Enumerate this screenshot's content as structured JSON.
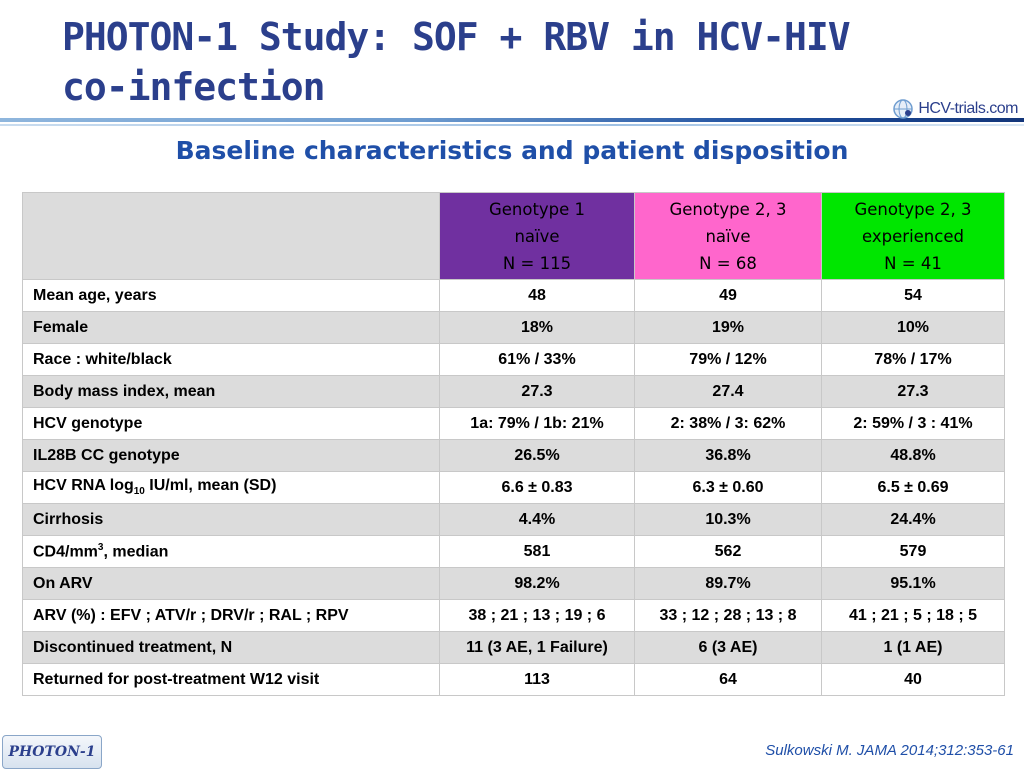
{
  "title_line1": "PHOTON-1 Study: SOF + RBV in HCV-HIV",
  "title_line2": "co-infection",
  "logo": {
    "text": "HCV-trials.com",
    "icon": "globe-logo-icon",
    "color": "#2b3f8c"
  },
  "subtitle": "Baseline characteristics and patient disposition",
  "columns": [
    {
      "lines": [
        "Genotype 1",
        "naïve",
        "N = 115"
      ],
      "color": "#7030a0"
    },
    {
      "lines": [
        "Genotype 2, 3",
        "naïve",
        "N = 68"
      ],
      "color": "#ff66cc"
    },
    {
      "lines": [
        "Genotype 2, 3",
        "experienced",
        "N = 41"
      ],
      "color": "#00e600"
    }
  ],
  "rows": [
    {
      "label": "Mean age, years",
      "values": [
        "48",
        "49",
        "54"
      ]
    },
    {
      "label": "Female",
      "values": [
        "18%",
        "19%",
        "10%"
      ]
    },
    {
      "label": "Race : white/black",
      "values": [
        "61% / 33%",
        "79% / 12%",
        "78% / 17%"
      ]
    },
    {
      "label": "Body mass index, mean",
      "values": [
        "27.3",
        "27.4",
        "27.3"
      ]
    },
    {
      "label": "HCV genotype",
      "values": [
        "1a: 79% / 1b: 21%",
        "2: 38% / 3: 62%",
        "2: 59% / 3 : 41%"
      ]
    },
    {
      "label": "IL28B CC genotype",
      "values": [
        "26.5%",
        "36.8%",
        "48.8%"
      ]
    },
    {
      "label_pre": "HCV RNA log",
      "label_sub": "10",
      "label_post": " IU/ml, mean (SD)",
      "values": [
        "6.6 ± 0.83",
        "6.3 ± 0.60",
        "6.5 ± 0.69"
      ]
    },
    {
      "label": "Cirrhosis",
      "values": [
        "4.4%",
        "10.3%",
        "24.4%"
      ]
    },
    {
      "label_pre": "CD4/mm",
      "label_sup": "3",
      "label_post": ", median",
      "values": [
        "581",
        "562",
        "579"
      ]
    },
    {
      "label": "On ARV",
      "values": [
        "98.2%",
        "89.7%",
        "95.1%"
      ]
    },
    {
      "label": "ARV (%) : EFV ; ATV/r ; DRV/r ; RAL ; RPV",
      "values": [
        "38 ; 21 ; 13 ; 19 ; 6",
        "33 ; 12 ; 28 ; 13 ; 8",
        "41 ; 21 ; 5 ; 18 ; 5"
      ]
    },
    {
      "label": "Discontinued treatment, N",
      "values": [
        "11 (3 AE, 1 Failure)",
        "6 (3 AE)",
        "1 (1 AE)"
      ]
    },
    {
      "label": "Returned for post-treatment W12 visit",
      "values": [
        "113",
        "64",
        "40"
      ]
    }
  ],
  "study_tag": "PHOTON-1",
  "citation": "Sulkowski M. JAMA 2014;312:353-61"
}
